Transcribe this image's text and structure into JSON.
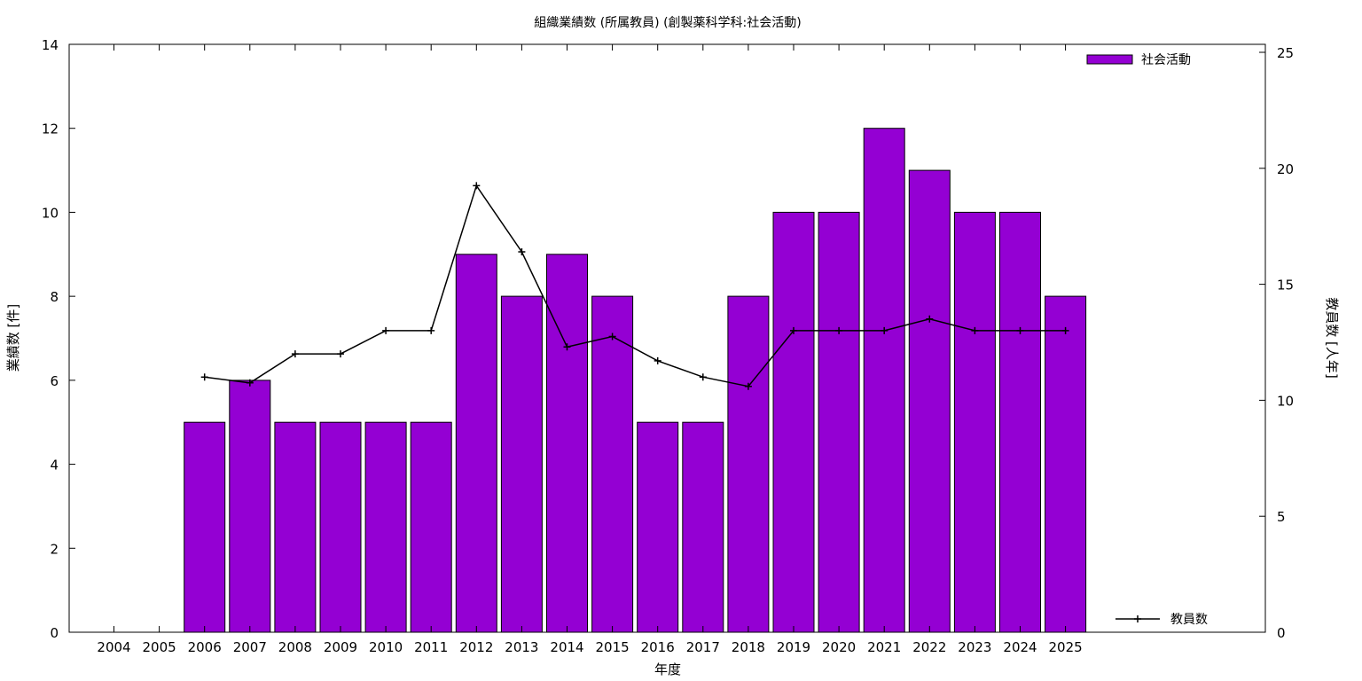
{
  "chart_data": {
    "type": "bar",
    "title": "組織業績数 (所属教員) (創製薬科学科:社会活動)",
    "xlabel": "年度",
    "ylabel": "業績数 [件]",
    "y2label": "教員数 [人年]",
    "categories": [
      "2004",
      "2005",
      "2006",
      "2007",
      "2008",
      "2009",
      "2010",
      "2011",
      "2012",
      "2013",
      "2014",
      "2015",
      "2016",
      "2017",
      "2018",
      "2019",
      "2020",
      "2021",
      "2022",
      "2023",
      "2024",
      "2025"
    ],
    "ylim": [
      0,
      14
    ],
    "y2lim": [
      0,
      25
    ],
    "yticks": [
      "0",
      "2",
      "4",
      "6",
      "8",
      "10",
      "12",
      "14"
    ],
    "y2ticks": [
      "0",
      "5",
      "10",
      "15",
      "20",
      "25"
    ],
    "grid": false,
    "series": [
      {
        "name": "社会活動",
        "type": "bar",
        "axis": "left",
        "color": "#9400d3",
        "values": [
          null,
          null,
          5,
          6,
          5,
          5,
          5,
          5,
          9,
          8,
          9,
          8,
          5,
          5,
          8,
          10,
          10,
          12,
          11,
          10,
          10,
          8
        ],
        "legend_position": "top-right"
      },
      {
        "name": "教員数",
        "type": "line",
        "axis": "right",
        "color": "#000000",
        "marker": "plus",
        "values": [
          null,
          null,
          11,
          10.75,
          12,
          12,
          13,
          13,
          19.25,
          16.4,
          12.3,
          12.75,
          11.7,
          11,
          10.6,
          13,
          13,
          13,
          13.5,
          13,
          13,
          13
        ],
        "legend_position": "bottom-right"
      }
    ]
  }
}
